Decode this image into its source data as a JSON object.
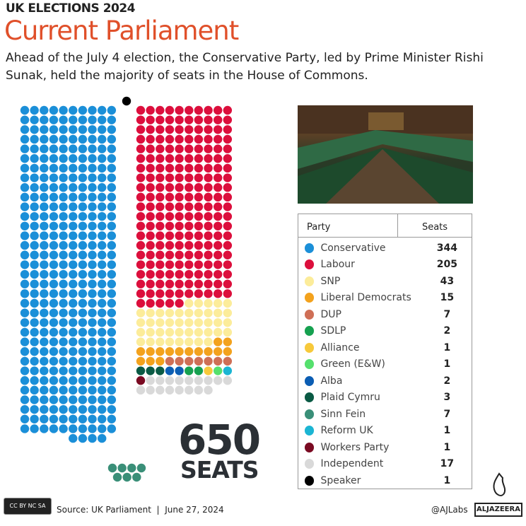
{
  "header": {
    "kicker": "UK ELECTIONS 2024",
    "title": "Current Parliament",
    "subtitle": "Ahead of the July 4 election, the Conservative Party, led by Prime Minister Rishi Sunak, held the majority of seats in the House of Commons."
  },
  "total": {
    "number": "650",
    "label": "SEATS"
  },
  "table": {
    "col_party": "Party",
    "col_seats": "Seats"
  },
  "chart_data": {
    "type": "parliament-dot",
    "total_seats": 650,
    "series": [
      {
        "name": "Conservative",
        "value": 344,
        "color": "#1b8fd8"
      },
      {
        "name": "Labour",
        "value": 205,
        "color": "#dc0f3c"
      },
      {
        "name": "SNP",
        "value": 43,
        "color": "#fcec9a"
      },
      {
        "name": "Liberal Democrats",
        "value": 15,
        "color": "#f3a21d"
      },
      {
        "name": "DUP",
        "value": 7,
        "color": "#cf6f56"
      },
      {
        "name": "SDLP",
        "value": 2,
        "color": "#16a150"
      },
      {
        "name": "Alliance",
        "value": 1,
        "color": "#f7c93b"
      },
      {
        "name": "Green (E&W)",
        "value": 1,
        "color": "#55e06d"
      },
      {
        "name": "Alba",
        "value": 2,
        "color": "#0b5db3"
      },
      {
        "name": "Plaid Cymru",
        "value": 3,
        "color": "#0a5a44"
      },
      {
        "name": "Sinn Fein",
        "value": 7,
        "color": "#3a8f78"
      },
      {
        "name": "Reform UK",
        "value": 1,
        "color": "#1bb5d3"
      },
      {
        "name": "Workers Party",
        "value": 1,
        "color": "#7a0a22"
      },
      {
        "name": "Independent",
        "value": 17,
        "color": "#d9d9d9"
      },
      {
        "name": "Speaker",
        "value": 1,
        "color": "#000000"
      }
    ]
  },
  "footer": {
    "license": "CC BY NC SA",
    "source": "Source: UK Parliament  |  June 27, 2024",
    "handle": "@AJLabs",
    "brand": "ALJAZEERA"
  }
}
